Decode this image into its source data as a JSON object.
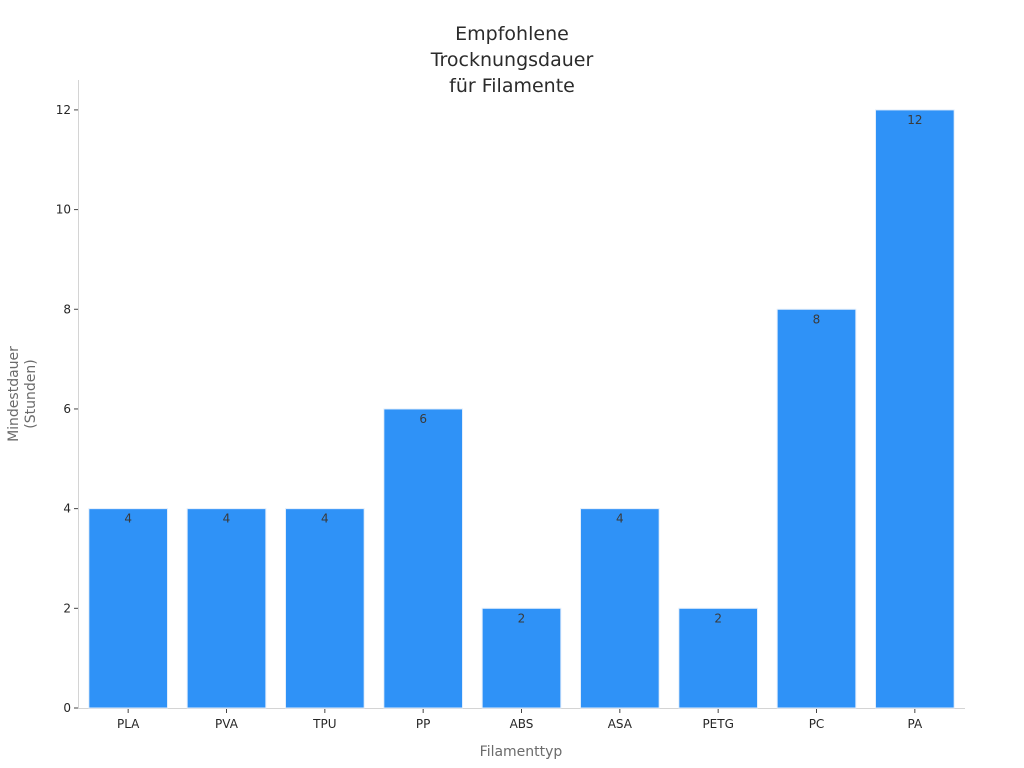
{
  "chart_data": {
    "type": "bar",
    "title_lines": [
      "Empfohlene",
      "Trocknungsdauer",
      "für Filamente"
    ],
    "xlabel": "Filamenttyp",
    "ylabel_lines": [
      "Mindestdauer",
      "(Stunden)"
    ],
    "categories": [
      "PLA",
      "PVA",
      "TPU",
      "PP",
      "ABS",
      "ASA",
      "PETG",
      "PC",
      "PA"
    ],
    "values": [
      4,
      4,
      4,
      6,
      2,
      4,
      2,
      8,
      12
    ],
    "data_labels": [
      "4",
      "4",
      "4",
      "6",
      "2",
      "4",
      "2",
      "8",
      "12"
    ],
    "ylim": [
      0,
      12.6
    ],
    "yticks": [
      0,
      2,
      4,
      6,
      8,
      10,
      12
    ],
    "grid": false,
    "bar_color": "#2f92f7"
  }
}
